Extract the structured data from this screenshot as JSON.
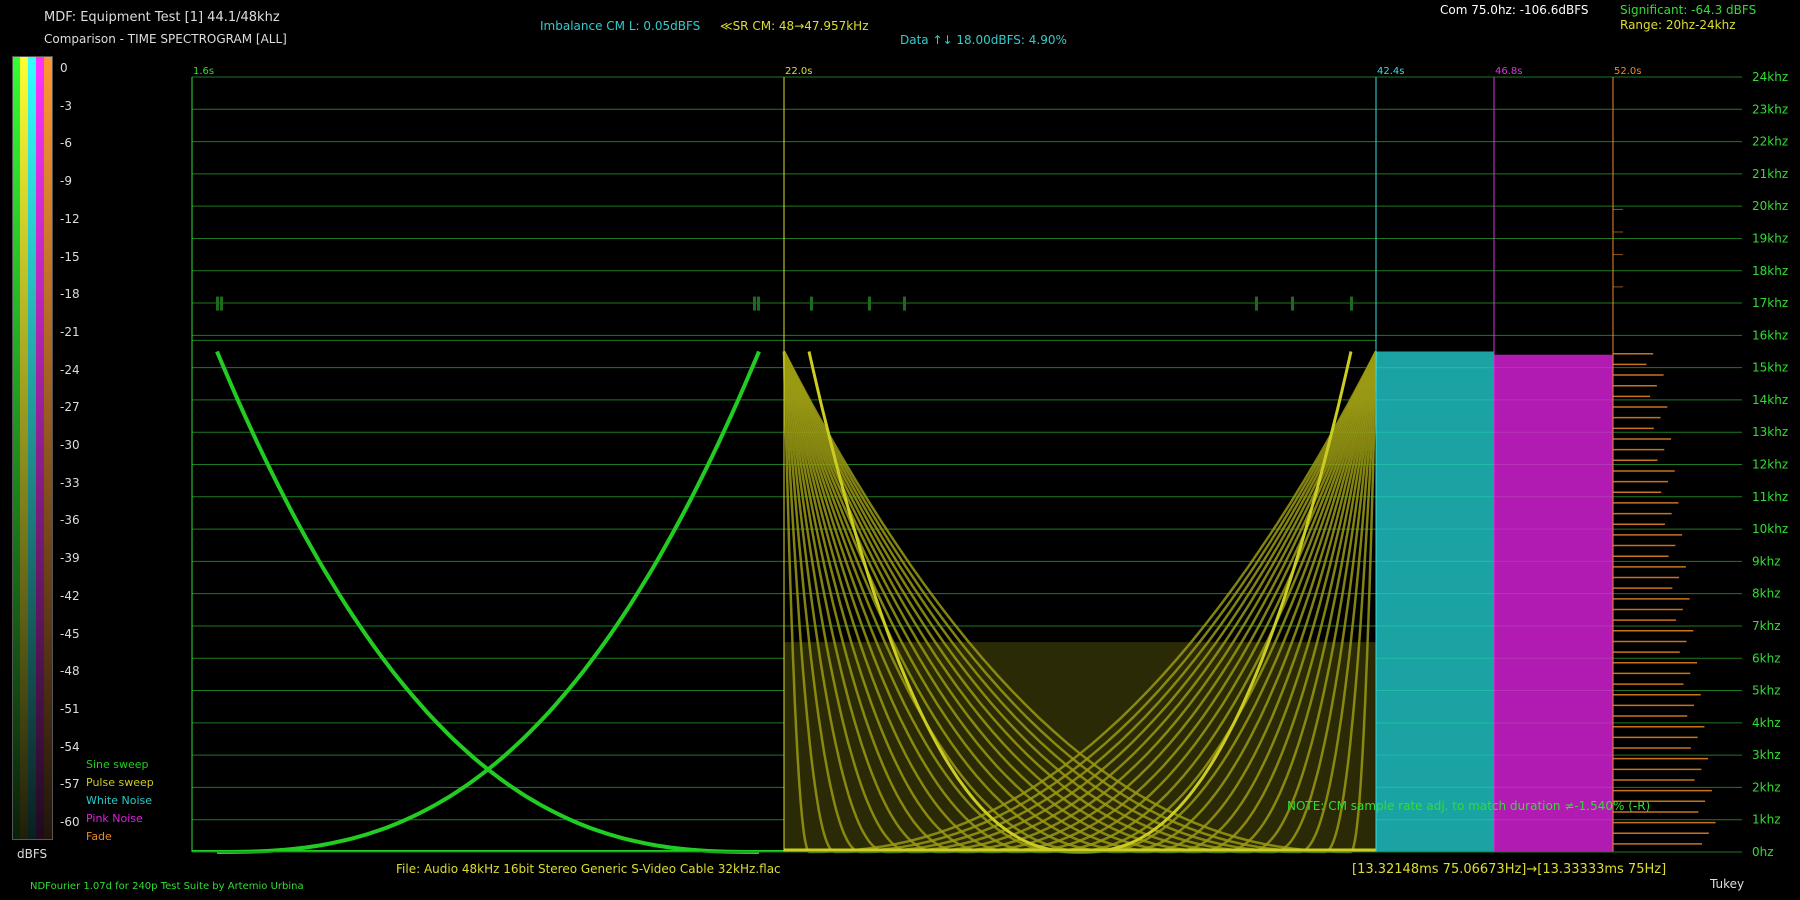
{
  "header": {
    "title": "MDF: Equipment Test [1] 44.1/48khz",
    "subtitle": "Comparison - TIME SPECTROGRAM [ALL]",
    "imbalance": "Imbalance CM L: 0.05dBFS",
    "sr": "≪SR CM: 48→47.957kHz",
    "data_note": "Data ↑↓ 18.00dBFS: 4.90%",
    "com": "Com 75.0hz: -106.6dBFS",
    "significant": "Significant: -64.3 dBFS",
    "range": "Range: 20hz-24khz"
  },
  "footer": {
    "file": "File: Audio    48kHz 16bit Stereo Generic S-Video Cable 32kHz.flac",
    "timing": "[13.32148ms 75.06673Hz]→[13.33333ms 75Hz]",
    "credit": "NDFourier 1.07d for 240p Test Suite by Artemio Urbina",
    "window": "Tukey"
  },
  "note": "NOTE: CM sample rate adj. to match duration ≠-1.540% (-R)",
  "colors": {
    "sine": "#22cc22",
    "pulse": "#cccc22",
    "white": "#22cccc",
    "pink": "#dd22dd",
    "fade": "#ee8822",
    "grid": "#1f7a1f",
    "axis_label": "#33dd33"
  },
  "chart_data": {
    "type": "heatmap",
    "title": "TIME SPECTROGRAM [ALL]",
    "xlabel": "",
    "ylabel": "",
    "ylim_khz": [
      0,
      24
    ],
    "y_ticks": [
      "0hz",
      "1khz",
      "2khz",
      "3khz",
      "4khz",
      "5khz",
      "6khz",
      "7khz",
      "8khz",
      "9khz",
      "10khz",
      "11khz",
      "12khz",
      "13khz",
      "14khz",
      "15khz",
      "16khz",
      "17khz",
      "18khz",
      "19khz",
      "20khz",
      "21khz",
      "22khz",
      "23khz",
      "24khz"
    ],
    "time_markers": [
      {
        "label": "1.6s",
        "time": 1.6,
        "color": "#33dd33"
      },
      {
        "label": "22.0s",
        "time": 22.0,
        "color": "#dddd33"
      },
      {
        "label": "42.4s",
        "time": 42.4,
        "color": "#33dddd"
      },
      {
        "label": "46.8s",
        "time": 46.8,
        "color": "#dd33dd"
      },
      {
        "label": "52.0s",
        "time": 52.0,
        "color": "#ee8833"
      }
    ],
    "time_end": 56.0,
    "sine_sweep_max_khz": 15.5,
    "pulse_sweep_max_khz": 15.5,
    "noise_max_khz": 15.5,
    "cutoff_line_khz": 16.0,
    "legend": [
      {
        "label": "Sine sweep",
        "color": "#22cc22"
      },
      {
        "label": "Pulse sweep",
        "color": "#cccc22"
      },
      {
        "label": "White Noise",
        "color": "#22cccc"
      },
      {
        "label": "Pink Noise",
        "color": "#dd22dd"
      },
      {
        "label": "Fade",
        "color": "#ee8822"
      }
    ],
    "color_scale": {
      "unit": "dBFS",
      "ticks": [
        "0",
        "-3",
        "-6",
        "-9",
        "-12",
        "-15",
        "-18",
        "-21",
        "-24",
        "-27",
        "-30",
        "-33",
        "-36",
        "-39",
        "-42",
        "-45",
        "-48",
        "-51",
        "-54",
        "-57",
        "-60"
      ]
    }
  }
}
